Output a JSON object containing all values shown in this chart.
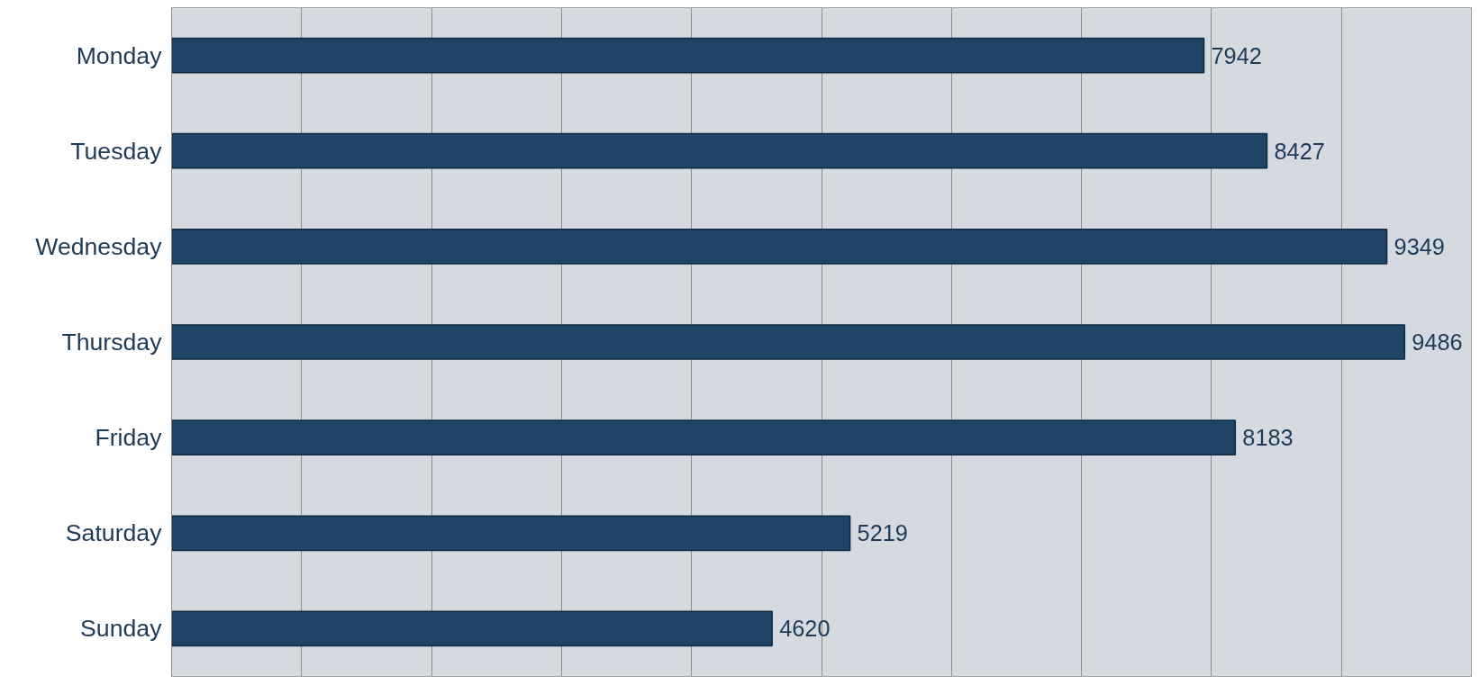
{
  "chart_data": {
    "type": "bar",
    "orientation": "horizontal",
    "categories": [
      "Monday",
      "Tuesday",
      "Wednesday",
      "Thursday",
      "Friday",
      "Saturday",
      "Sunday"
    ],
    "values": [
      7942,
      8427,
      9349,
      9486,
      8183,
      5219,
      4620
    ],
    "color": "#1f4566",
    "xlim": [
      0,
      10000
    ],
    "xticks": [
      {
        "value": 0,
        "label": null
      },
      {
        "value": 1000,
        "label": null
      },
      {
        "value": 2000,
        "label": null
      },
      {
        "value": 3000,
        "label": null
      },
      {
        "value": 4000,
        "label": null
      },
      {
        "value": 5000,
        "label": null
      },
      {
        "value": 6000,
        "label": null
      },
      {
        "value": 7000,
        "label": null
      },
      {
        "value": 8000,
        "label": null
      },
      {
        "value": 9000,
        "label": null
      },
      {
        "value": 10000,
        "label": null
      }
    ],
    "tick_labels": "y",
    "grid": "x",
    "data_labels": true
  }
}
